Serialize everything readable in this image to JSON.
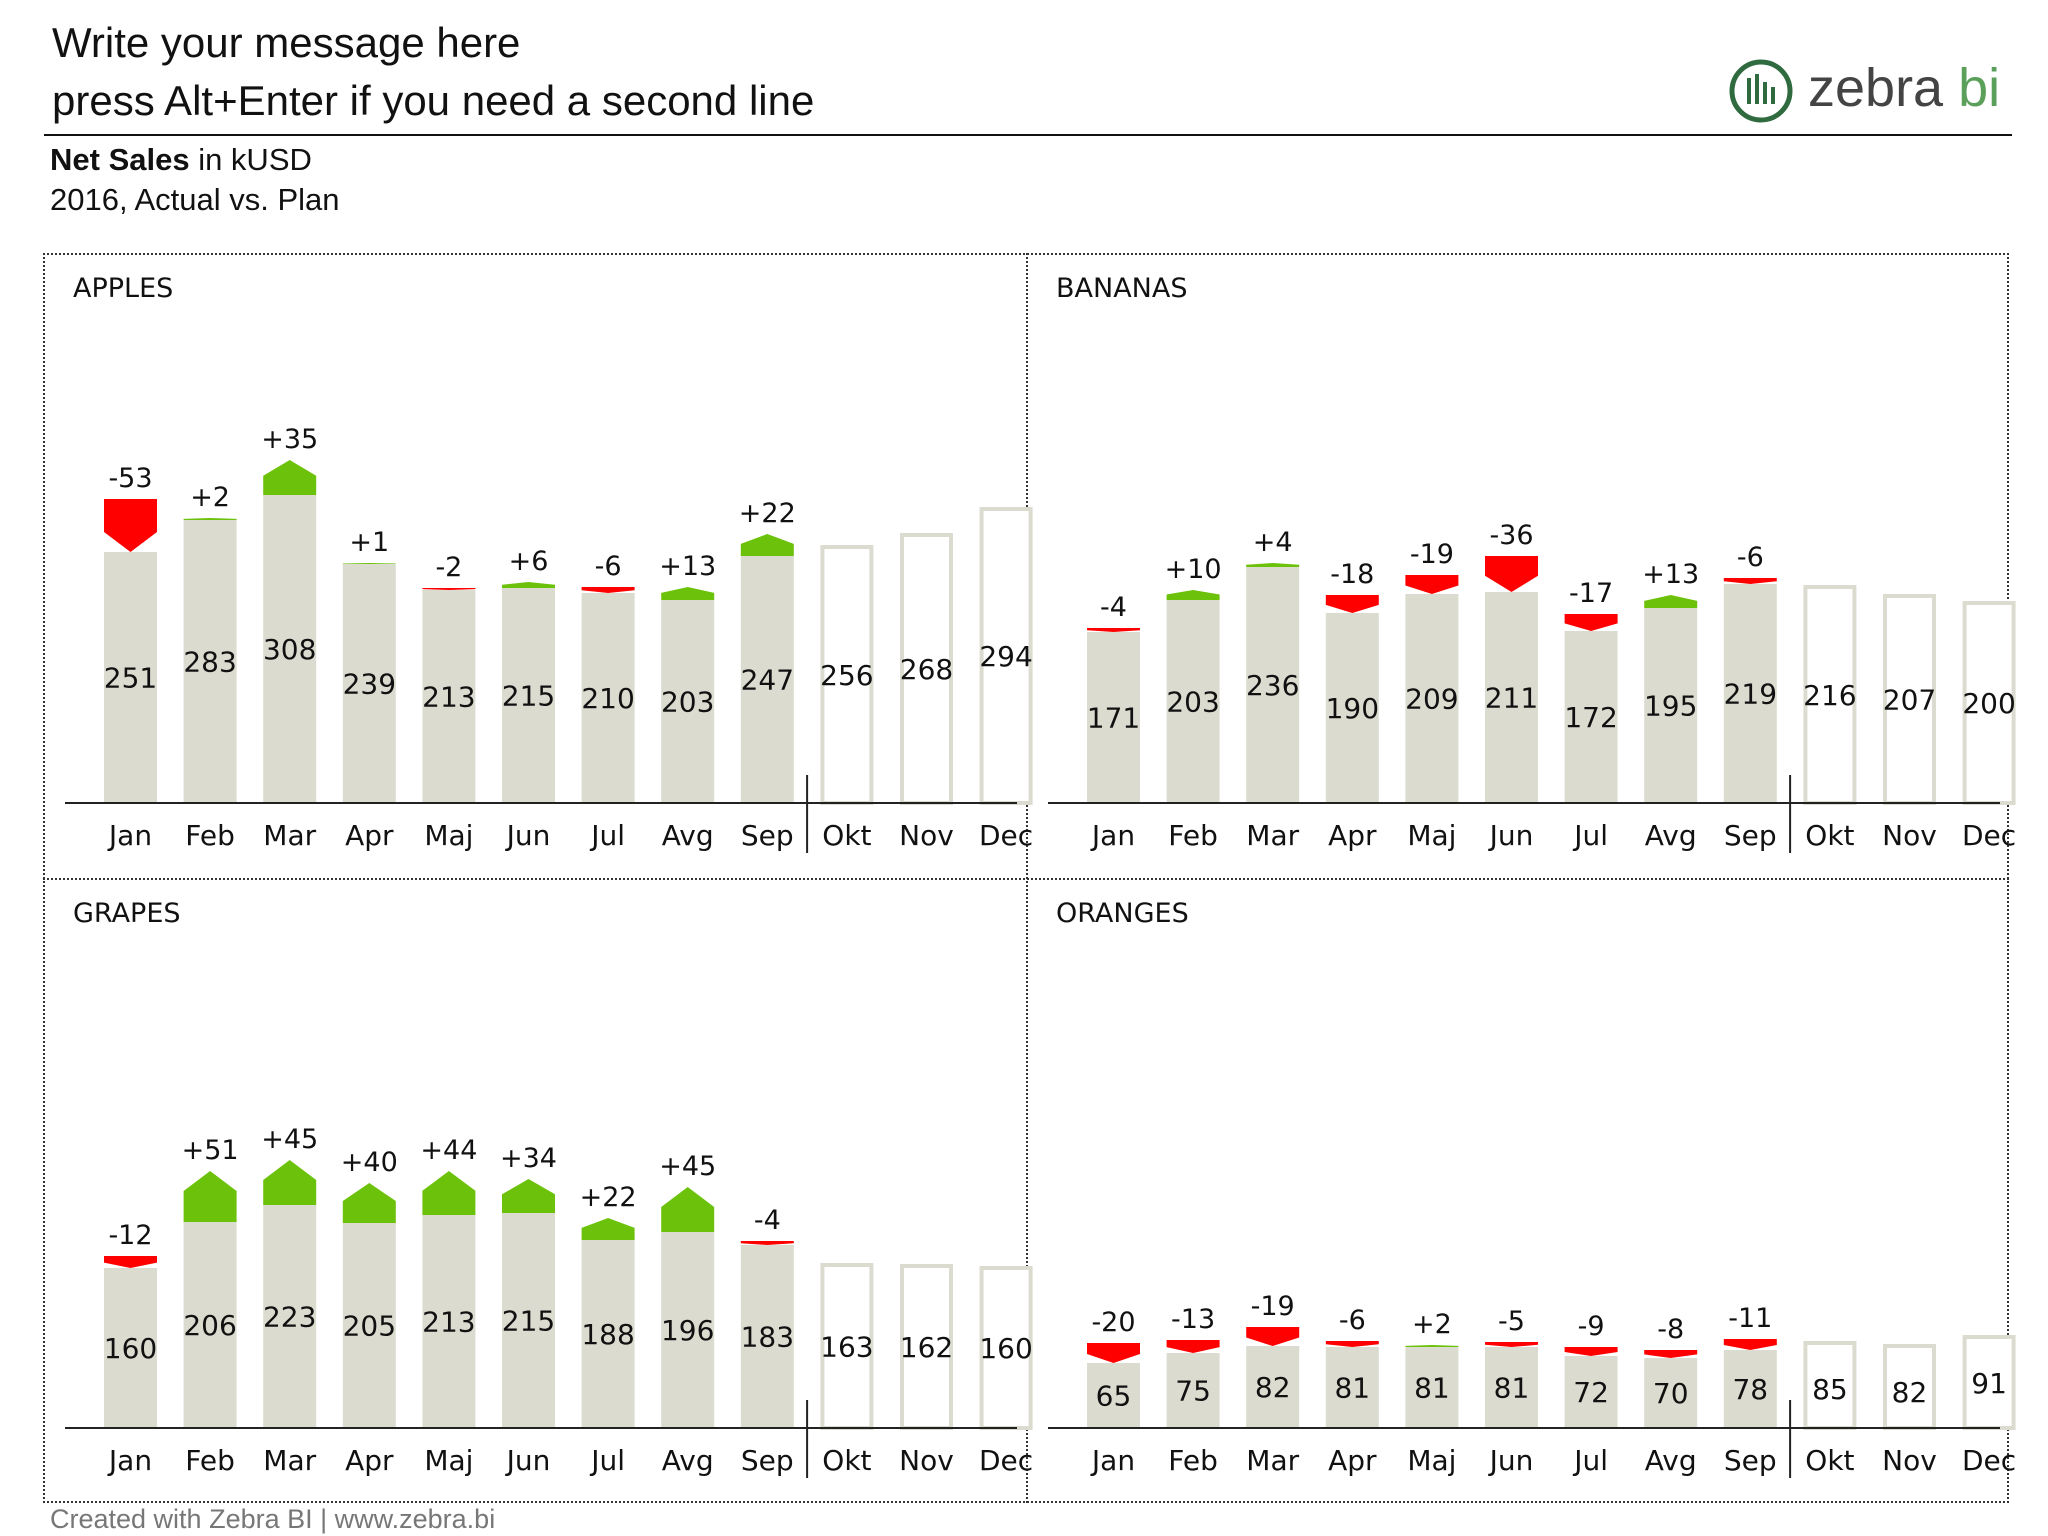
{
  "header": {
    "title_line1": "Write your message here",
    "title_line2": "press Alt+Enter if you need a second line",
    "logo_text_main": "zebra",
    "logo_text_accent": " bi",
    "subtitle_bold": "Net Sales",
    "subtitle_rest": " in kUSD",
    "subtitle_line2": "2016, Actual vs. Plan"
  },
  "footer": {
    "text": "Created with Zebra BI  |  www.zebra.bi"
  },
  "colors": {
    "actual_bar": "#dcdbd0",
    "forecast_outline": "#dcdbd0",
    "positive": "#6cc20a",
    "negative": "#ff0000",
    "axis": "#222222",
    "logo_accent": "#5aa05a"
  },
  "chart_data": [
    {
      "type": "bar",
      "title": "APPLES",
      "categories": [
        "Jan",
        "Feb",
        "Mar",
        "Apr",
        "Maj",
        "Jun",
        "Jul",
        "Avg",
        "Sep",
        "Okt",
        "Nov",
        "Dec"
      ],
      "values": [
        251,
        283,
        308,
        239,
        213,
        215,
        210,
        203,
        247,
        256,
        268,
        294
      ],
      "variance": [
        -53,
        2,
        35,
        1,
        -2,
        6,
        -6,
        13,
        22,
        null,
        null,
        null
      ],
      "variance_labels": [
        "-53",
        "+2",
        "+35",
        "+1",
        "-2",
        "+6",
        "-6",
        "+13",
        "+22",
        "",
        "",
        ""
      ],
      "actual_months": 9,
      "ylim": [
        0,
        360
      ]
    },
    {
      "type": "bar",
      "title": "BANANAS",
      "categories": [
        "Jan",
        "Feb",
        "Mar",
        "Apr",
        "Maj",
        "Jun",
        "Jul",
        "Avg",
        "Sep",
        "Okt",
        "Nov",
        "Dec"
      ],
      "values": [
        171,
        203,
        236,
        190,
        209,
        211,
        172,
        195,
        219,
        216,
        207,
        200
      ],
      "variance": [
        -4,
        10,
        4,
        -18,
        -19,
        -36,
        -17,
        13,
        -6,
        null,
        null,
        null
      ],
      "variance_labels": [
        "-4",
        "+10",
        "+4",
        "-18",
        "-19",
        "-36",
        "-17",
        "+13",
        "-6",
        "",
        "",
        ""
      ],
      "actual_months": 9,
      "ylim": [
        0,
        360
      ]
    },
    {
      "type": "bar",
      "title": "GRAPES",
      "categories": [
        "Jan",
        "Feb",
        "Mar",
        "Apr",
        "Maj",
        "Jun",
        "Jul",
        "Avg",
        "Sep",
        "Okt",
        "Nov",
        "Dec"
      ],
      "values": [
        160,
        206,
        223,
        205,
        213,
        215,
        188,
        196,
        183,
        163,
        162,
        160
      ],
      "variance": [
        -12,
        51,
        45,
        40,
        44,
        34,
        22,
        45,
        -4,
        null,
        null,
        null
      ],
      "variance_labels": [
        "-12",
        "+51",
        "+45",
        "+40",
        "+44",
        "+34",
        "+22",
        "+45",
        "-4",
        "",
        "",
        ""
      ],
      "actual_months": 9,
      "ylim": [
        0,
        360
      ]
    },
    {
      "type": "bar",
      "title": "ORANGES",
      "categories": [
        "Jan",
        "Feb",
        "Mar",
        "Apr",
        "Maj",
        "Jun",
        "Jul",
        "Avg",
        "Sep",
        "Okt",
        "Nov",
        "Dec"
      ],
      "values": [
        65,
        75,
        82,
        81,
        81,
        81,
        72,
        70,
        78,
        85,
        82,
        91
      ],
      "variance": [
        -20,
        -13,
        -19,
        -6,
        2,
        -5,
        -9,
        -8,
        -11,
        null,
        null,
        null
      ],
      "variance_labels": [
        "-20",
        "-13",
        "-19",
        "-6",
        "+2",
        "-5",
        "-9",
        "-8",
        "-11",
        "",
        "",
        ""
      ],
      "actual_months": 9,
      "ylim": [
        0,
        360
      ]
    }
  ]
}
